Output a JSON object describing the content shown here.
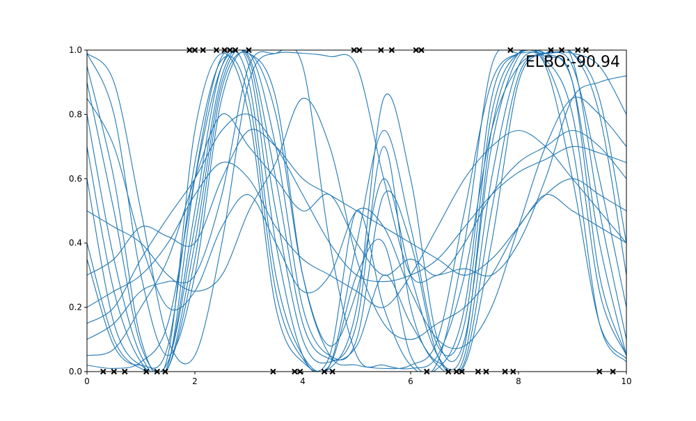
{
  "chart_data": {
    "type": "line",
    "title": "",
    "xlabel": "",
    "ylabel": "",
    "xlim": [
      0,
      10
    ],
    "ylim": [
      0,
      1
    ],
    "xticks": [
      0,
      2,
      4,
      6,
      8,
      10
    ],
    "yticks": [
      0.0,
      0.2,
      0.4,
      0.6,
      0.8,
      1.0
    ],
    "xtick_labels": [
      "0",
      "2",
      "4",
      "6",
      "8",
      "10"
    ],
    "ytick_labels": [
      "0.0",
      "0.2",
      "0.4",
      "0.6",
      "0.8",
      "1.0"
    ],
    "grid": false,
    "annotation": "ELBO:-90.94",
    "line_color": "#1f77b4",
    "marker_color": "#000000",
    "x": [
      0,
      0.5,
      1,
      1.5,
      2,
      2.5,
      3,
      3.5,
      4,
      4.5,
      5,
      5.5,
      6,
      6.5,
      7,
      7.5,
      8,
      8.5,
      9,
      9.5,
      10
    ],
    "series": [
      {
        "values": [
          0.8,
          0.35,
          0.05,
          0.01,
          0.4,
          0.9,
          0.97,
          0.5,
          0.1,
          0.03,
          0.15,
          0.7,
          0.2,
          0.02,
          0.05,
          0.6,
          0.95,
          0.99,
          0.97,
          0.5,
          0.1
        ]
      },
      {
        "values": [
          0.95,
          0.6,
          0.1,
          0.02,
          0.6,
          0.98,
          0.9,
          0.3,
          0.05,
          0.02,
          0.3,
          0.4,
          0.05,
          0.01,
          0.2,
          0.85,
          0.99,
          0.98,
          0.9,
          0.3,
          0.05
        ]
      },
      {
        "values": [
          0.6,
          0.15,
          0.02,
          0.05,
          0.75,
          0.99,
          0.8,
          0.2,
          0.03,
          0.05,
          0.5,
          0.2,
          0.02,
          0.03,
          0.4,
          0.95,
          0.99,
          0.96,
          0.7,
          0.15,
          0.03
        ]
      },
      {
        "values": [
          0.99,
          0.8,
          0.3,
          0.05,
          0.3,
          0.85,
          0.99,
          0.7,
          0.2,
          0.05,
          0.1,
          0.55,
          0.4,
          0.05,
          0.02,
          0.4,
          0.9,
          0.99,
          0.99,
          0.8,
          0.3
        ]
      },
      {
        "values": [
          0.4,
          0.1,
          0.01,
          0.02,
          0.5,
          0.95,
          0.95,
          0.4,
          0.05,
          0.01,
          0.2,
          0.85,
          0.6,
          0.1,
          0.1,
          0.7,
          0.98,
          0.99,
          0.95,
          0.6,
          0.2
        ]
      },
      {
        "values": [
          0.9,
          0.5,
          0.08,
          0.03,
          0.45,
          0.92,
          0.98,
          0.6,
          0.15,
          0.04,
          0.08,
          0.3,
          0.15,
          0.03,
          0.08,
          0.75,
          0.99,
          0.97,
          0.8,
          0.25,
          0.05
        ]
      },
      {
        "values": [
          0.7,
          0.25,
          0.03,
          0.01,
          0.35,
          0.88,
          0.99,
          0.8,
          0.3,
          0.08,
          0.25,
          0.6,
          0.3,
          0.05,
          0.03,
          0.5,
          0.92,
          0.99,
          0.99,
          0.85,
          0.4
        ]
      },
      {
        "values": [
          0.35,
          0.08,
          0.02,
          0.08,
          0.65,
          0.97,
          0.85,
          0.25,
          0.04,
          0.02,
          0.4,
          0.75,
          0.45,
          0.08,
          0.15,
          0.8,
          0.99,
          0.95,
          0.6,
          0.15,
          0.04
        ]
      },
      {
        "values": [
          0.05,
          0.07,
          0.2,
          0.35,
          0.6,
          0.8,
          0.7,
          0.6,
          0.5,
          0.55,
          0.4,
          0.3,
          0.35,
          0.3,
          0.4,
          0.55,
          0.65,
          0.7,
          0.75,
          0.7,
          0.6
        ]
      },
      {
        "values": [
          0.2,
          0.25,
          0.3,
          0.4,
          0.55,
          0.65,
          0.6,
          0.45,
          0.35,
          0.3,
          0.25,
          0.2,
          0.3,
          0.45,
          0.6,
          0.7,
          0.75,
          0.7,
          0.6,
          0.5,
          0.4
        ]
      },
      {
        "values": [
          0.5,
          0.45,
          0.4,
          0.3,
          0.25,
          0.3,
          0.5,
          0.65,
          0.85,
          0.7,
          0.35,
          0.15,
          0.1,
          0.15,
          0.2,
          0.3,
          0.45,
          0.55,
          0.6,
          0.55,
          0.5
        ]
      },
      {
        "values": [
          0.15,
          0.2,
          0.35,
          0.48,
          0.6,
          0.75,
          0.8,
          0.7,
          0.55,
          0.4,
          0.3,
          0.28,
          0.3,
          0.35,
          0.45,
          0.55,
          0.62,
          0.66,
          0.7,
          0.68,
          0.65
        ]
      },
      {
        "values": [
          0.85,
          0.7,
          0.4,
          0.2,
          0.25,
          0.45,
          0.55,
          0.4,
          0.25,
          0.3,
          0.5,
          0.45,
          0.25,
          0.1,
          0.08,
          0.2,
          0.45,
          0.7,
          0.85,
          0.8,
          0.7
        ]
      },
      {
        "values": [
          0.1,
          0.15,
          0.25,
          0.28,
          0.3,
          0.55,
          0.95,
          0.99,
          0.99,
          0.98,
          0.95,
          0.6,
          0.3,
          0.3,
          0.32,
          0.3,
          0.4,
          0.6,
          0.85,
          0.9,
          0.92
        ]
      },
      {
        "values": [
          0.3,
          0.35,
          0.45,
          0.42,
          0.4,
          0.6,
          0.75,
          0.7,
          0.6,
          0.55,
          0.5,
          0.45,
          0.4,
          0.35,
          0.3,
          0.35,
          0.45,
          0.55,
          0.5,
          0.45,
          0.4
        ]
      },
      {
        "values": [
          0.99,
          0.9,
          0.5,
          0.1,
          0.05,
          0.4,
          0.9,
          0.99,
          0.95,
          0.4,
          0.05,
          0.02,
          0.01,
          0.05,
          0.3,
          0.75,
          0.95,
          0.99,
          0.99,
          0.95,
          0.8
        ]
      },
      {
        "values": [
          0.02,
          0.01,
          0.03,
          0.15,
          0.6,
          0.95,
          0.99,
          0.85,
          0.3,
          0.05,
          0.02,
          0.01,
          0.02,
          0.1,
          0.5,
          0.9,
          0.99,
          0.99,
          0.9,
          0.4,
          0.05
        ]
      }
    ],
    "observations": [
      {
        "x": 0.3,
        "y": 0
      },
      {
        "x": 0.5,
        "y": 0
      },
      {
        "x": 0.7,
        "y": 0
      },
      {
        "x": 1.1,
        "y": 0
      },
      {
        "x": 1.3,
        "y": 0
      },
      {
        "x": 1.45,
        "y": 0
      },
      {
        "x": 1.9,
        "y": 1
      },
      {
        "x": 2.0,
        "y": 1
      },
      {
        "x": 2.15,
        "y": 1
      },
      {
        "x": 2.4,
        "y": 1
      },
      {
        "x": 2.55,
        "y": 1
      },
      {
        "x": 2.65,
        "y": 1
      },
      {
        "x": 2.75,
        "y": 1
      },
      {
        "x": 3.0,
        "y": 1
      },
      {
        "x": 3.45,
        "y": 0
      },
      {
        "x": 3.85,
        "y": 0
      },
      {
        "x": 3.95,
        "y": 0
      },
      {
        "x": 4.4,
        "y": 0
      },
      {
        "x": 4.55,
        "y": 0
      },
      {
        "x": 4.95,
        "y": 1
      },
      {
        "x": 5.05,
        "y": 1
      },
      {
        "x": 5.45,
        "y": 1
      },
      {
        "x": 5.65,
        "y": 1
      },
      {
        "x": 6.1,
        "y": 1
      },
      {
        "x": 6.2,
        "y": 1
      },
      {
        "x": 6.3,
        "y": 0
      },
      {
        "x": 6.7,
        "y": 0
      },
      {
        "x": 6.85,
        "y": 0
      },
      {
        "x": 6.95,
        "y": 0
      },
      {
        "x": 7.25,
        "y": 0
      },
      {
        "x": 7.4,
        "y": 0
      },
      {
        "x": 7.75,
        "y": 0
      },
      {
        "x": 7.85,
        "y": 1
      },
      {
        "x": 7.9,
        "y": 0
      },
      {
        "x": 8.6,
        "y": 1
      },
      {
        "x": 8.8,
        "y": 1
      },
      {
        "x": 9.1,
        "y": 1
      },
      {
        "x": 9.25,
        "y": 1
      },
      {
        "x": 9.5,
        "y": 0
      },
      {
        "x": 9.75,
        "y": 0
      }
    ]
  }
}
